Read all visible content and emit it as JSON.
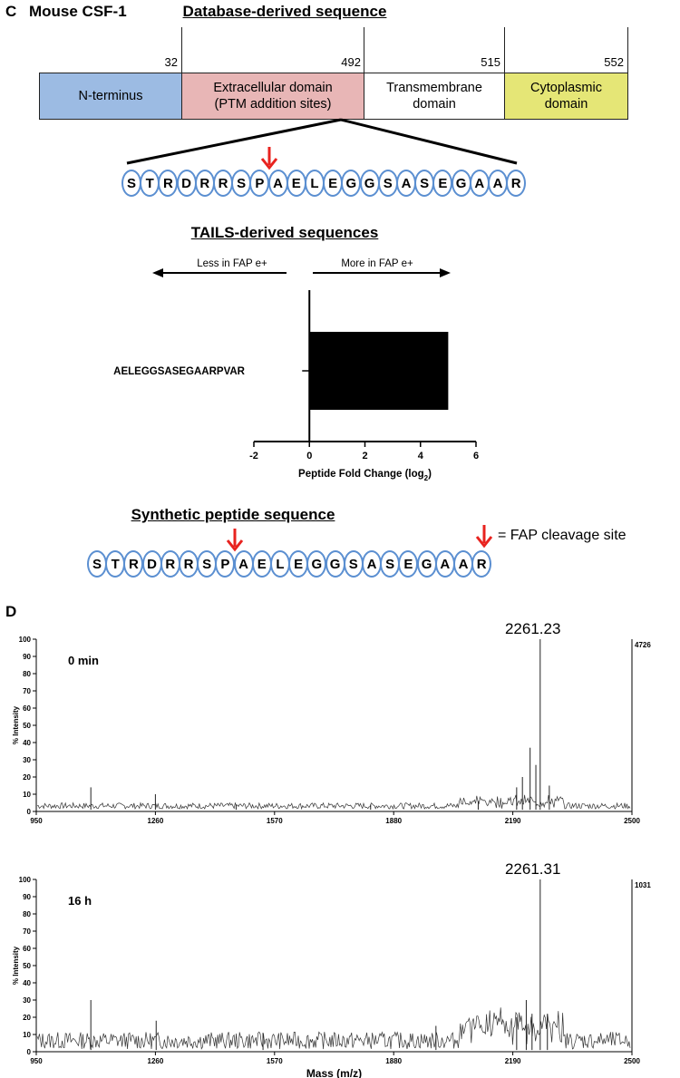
{
  "panel_c": {
    "letter": "C",
    "title": "Mouse CSF-1",
    "database_title": "Database-derived sequence",
    "domains": [
      {
        "label": "N-terminus",
        "color": "#9cbbe3"
      },
      {
        "label": "Extracellular domain (PTM addition sites)",
        "color": "#e8b6b6"
      },
      {
        "label": "Transmembrane domain",
        "color": "#ffffff"
      },
      {
        "label": "Cytoplasmic domain",
        "color": "#e5e676"
      }
    ],
    "boundaries": [
      "32",
      "492",
      "515",
      "552"
    ],
    "sequence": [
      "S",
      "T",
      "R",
      "D",
      "R",
      "R",
      "S",
      "P",
      "A",
      "E",
      "L",
      "E",
      "G",
      "G",
      "S",
      "A",
      "S",
      "E",
      "G",
      "A",
      "A",
      "R"
    ],
    "tails_title": "TAILS-derived sequences",
    "less_label": "Less in FAP e+",
    "more_label": "More in FAP e+",
    "synthetic_title": "Synthetic peptide sequence",
    "legend_text": "= FAP cleavage site",
    "legend_arrow_color": "#e8231f"
  },
  "panel_d": {
    "letter": "D"
  },
  "chart_data": [
    {
      "type": "bar",
      "orientation": "horizontal",
      "categories": [
        "AELEGGSASEGAARPVAR"
      ],
      "values": [
        5.0
      ],
      "xlabel": "Peptide Fold Change (log",
      "xlabel_sub": "2",
      "xlabel_end": ")",
      "xlim": [
        -2,
        6
      ],
      "xticks": [
        "-2",
        "0",
        "2",
        "4",
        "6"
      ],
      "bar_color": "#000000"
    },
    {
      "type": "line",
      "annotation": "0 min",
      "peak_label": "2261.23",
      "max_count": "4726",
      "ylabel": "% Intensity",
      "xlabel": "",
      "xlim": [
        950,
        2500
      ],
      "ylim": [
        0,
        100
      ],
      "xticks": [
        "950",
        "1260",
        "1570",
        "1880",
        "2190",
        "2500"
      ],
      "yticks": [
        "0",
        "10",
        "20",
        "30",
        "40",
        "50",
        "60",
        "70",
        "80",
        "90",
        "100"
      ],
      "peaks": [
        {
          "x": 1092,
          "y": 14
        },
        {
          "x": 1260,
          "y": 10
        },
        {
          "x": 1470,
          "y": 4
        },
        {
          "x": 1820,
          "y": 4
        },
        {
          "x": 2100,
          "y": 6
        },
        {
          "x": 2200,
          "y": 14
        },
        {
          "x": 2215,
          "y": 20
        },
        {
          "x": 2235,
          "y": 37
        },
        {
          "x": 2250,
          "y": 27
        },
        {
          "x": 2261.23,
          "y": 100
        },
        {
          "x": 2285,
          "y": 15
        }
      ]
    },
    {
      "type": "line",
      "annotation": "16 h",
      "peak_label": "2261.31",
      "max_count": "1031",
      "ylabel": "% Intensity",
      "xlabel": "Mass (m/z)",
      "xlim": [
        950,
        2500
      ],
      "ylim": [
        0,
        100
      ],
      "xticks": [
        "950",
        "1260",
        "1570",
        "1880",
        "2190",
        "2500"
      ],
      "yticks": [
        "0",
        "10",
        "20",
        "30",
        "40",
        "50",
        "60",
        "70",
        "80",
        "90",
        "100"
      ],
      "peaks": [
        {
          "x": 1092,
          "y": 30
        },
        {
          "x": 1262,
          "y": 18
        },
        {
          "x": 1540,
          "y": 11
        },
        {
          "x": 1990,
          "y": 15
        },
        {
          "x": 2200,
          "y": 20
        },
        {
          "x": 2225,
          "y": 30
        },
        {
          "x": 2240,
          "y": 22
        },
        {
          "x": 2261.31,
          "y": 100
        },
        {
          "x": 2280,
          "y": 22
        }
      ]
    }
  ]
}
